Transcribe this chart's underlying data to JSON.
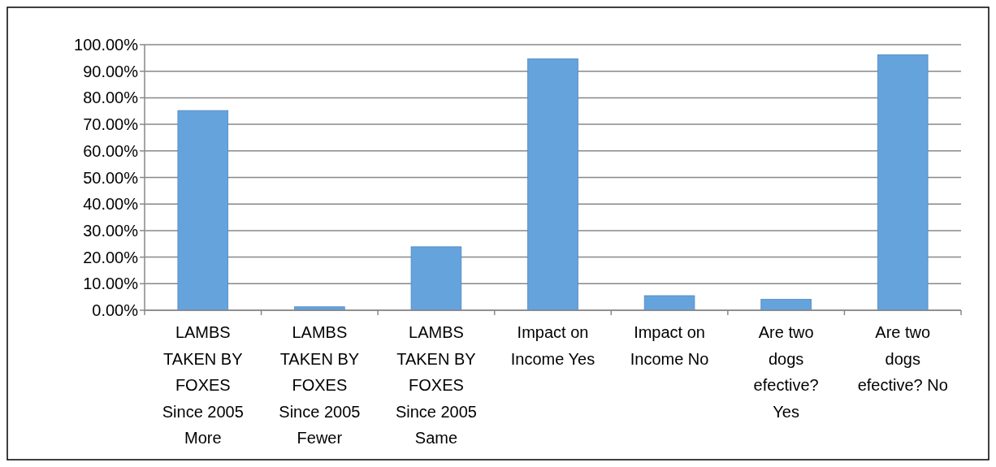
{
  "chart_data": {
    "type": "bar",
    "categories": [
      "LAMBS TAKEN BY FOXES Since 2005 More",
      "LAMBS TAKEN BY FOXES Since 2005 Fewer",
      "LAMBS TAKEN BY FOXES Since 2005 Same",
      "Impact on Income Yes",
      "Impact on Income No",
      "Are two dogs efective? Yes",
      "Are two dogs efective? No"
    ],
    "values": [
      75.2,
      1.3,
      23.9,
      94.7,
      5.5,
      4.1,
      96.2
    ],
    "color": "#65a3dd",
    "ylim": [
      0,
      100
    ],
    "yticks": [
      {
        "value": 0,
        "label": "0.00%"
      },
      {
        "value": 10,
        "label": "10.00%"
      },
      {
        "value": 20,
        "label": "20.00%"
      },
      {
        "value": 30,
        "label": "30.00%"
      },
      {
        "value": 40,
        "label": "40.00%"
      },
      {
        "value": 50,
        "label": "50.00%"
      },
      {
        "value": 60,
        "label": "60.00%"
      },
      {
        "value": 70,
        "label": "70.00%"
      },
      {
        "value": 80,
        "label": "80.00%"
      },
      {
        "value": 90,
        "label": "90.00%"
      },
      {
        "value": 100,
        "label": "100.00%"
      }
    ],
    "grid": "y"
  }
}
